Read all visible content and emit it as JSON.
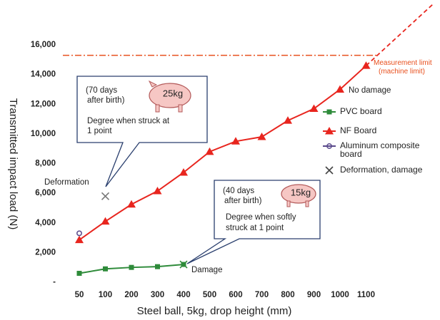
{
  "chart_data": {
    "type": "line",
    "x_label": "Steel ball, 5kg, drop height (mm)",
    "y_label": "Transmitted impact load (N)",
    "categories": [
      "50",
      "100",
      "200",
      "300",
      "400",
      "500",
      "600",
      "700",
      "800",
      "900",
      "1000",
      "1100"
    ],
    "ylim": [
      0,
      16000
    ],
    "yticks": [
      {
        "value": 0,
        "label": "-"
      },
      {
        "value": 2000,
        "label": "2,000"
      },
      {
        "value": 4000,
        "label": "4,000"
      },
      {
        "value": 6000,
        "label": "6,000"
      },
      {
        "value": 8000,
        "label": "8,000"
      },
      {
        "value": 10000,
        "label": "10,000"
      },
      {
        "value": 12000,
        "label": "12,000"
      },
      {
        "value": 14000,
        "label": "14,000"
      },
      {
        "value": 16000,
        "label": "16,000"
      }
    ],
    "grid": false,
    "series": [
      {
        "name": "PVC board",
        "color": "#2e8b3a",
        "marker": "square",
        "values": [
          600,
          900,
          1000,
          1050,
          1200,
          null,
          null,
          null,
          null,
          null,
          null,
          null
        ]
      },
      {
        "name": "NF Board",
        "color": "#e8251e",
        "marker": "triangle",
        "values": [
          2850,
          4100,
          5250,
          6150,
          7400,
          8800,
          9500,
          9800,
          10900,
          11700,
          13000,
          14600
        ]
      },
      {
        "name": "Aluminum composite board",
        "color": "#5a4a8c",
        "marker": "circle",
        "values": [
          3300,
          null,
          null,
          null,
          null,
          null,
          null,
          null,
          null,
          null,
          null,
          null
        ]
      },
      {
        "name": "Deformation, damage",
        "color": "#444444",
        "marker": "x",
        "values": [
          null,
          5800,
          null,
          null,
          1200,
          null,
          null,
          null,
          null,
          null,
          null,
          null
        ]
      }
    ],
    "limit_line": {
      "value": 15300,
      "label": "Measurement limit",
      "sublabel": "(machine limit)",
      "color": "#e8501e"
    },
    "annotations": {
      "deformation": "Deformation",
      "damage": "Damage",
      "no_damage": "No damage",
      "callout1_line1": "(70 days",
      "callout1_line2": "after birth)",
      "callout1_weight": "25kg",
      "callout1_line3": "Degree when struck at",
      "callout1_line4": "1 point",
      "callout2_line1": "(40 days",
      "callout2_line2": "after birth)",
      "callout2_weight": "15kg",
      "callout2_line3": "Degree when softly",
      "callout2_line4": "struck at 1 point"
    }
  }
}
